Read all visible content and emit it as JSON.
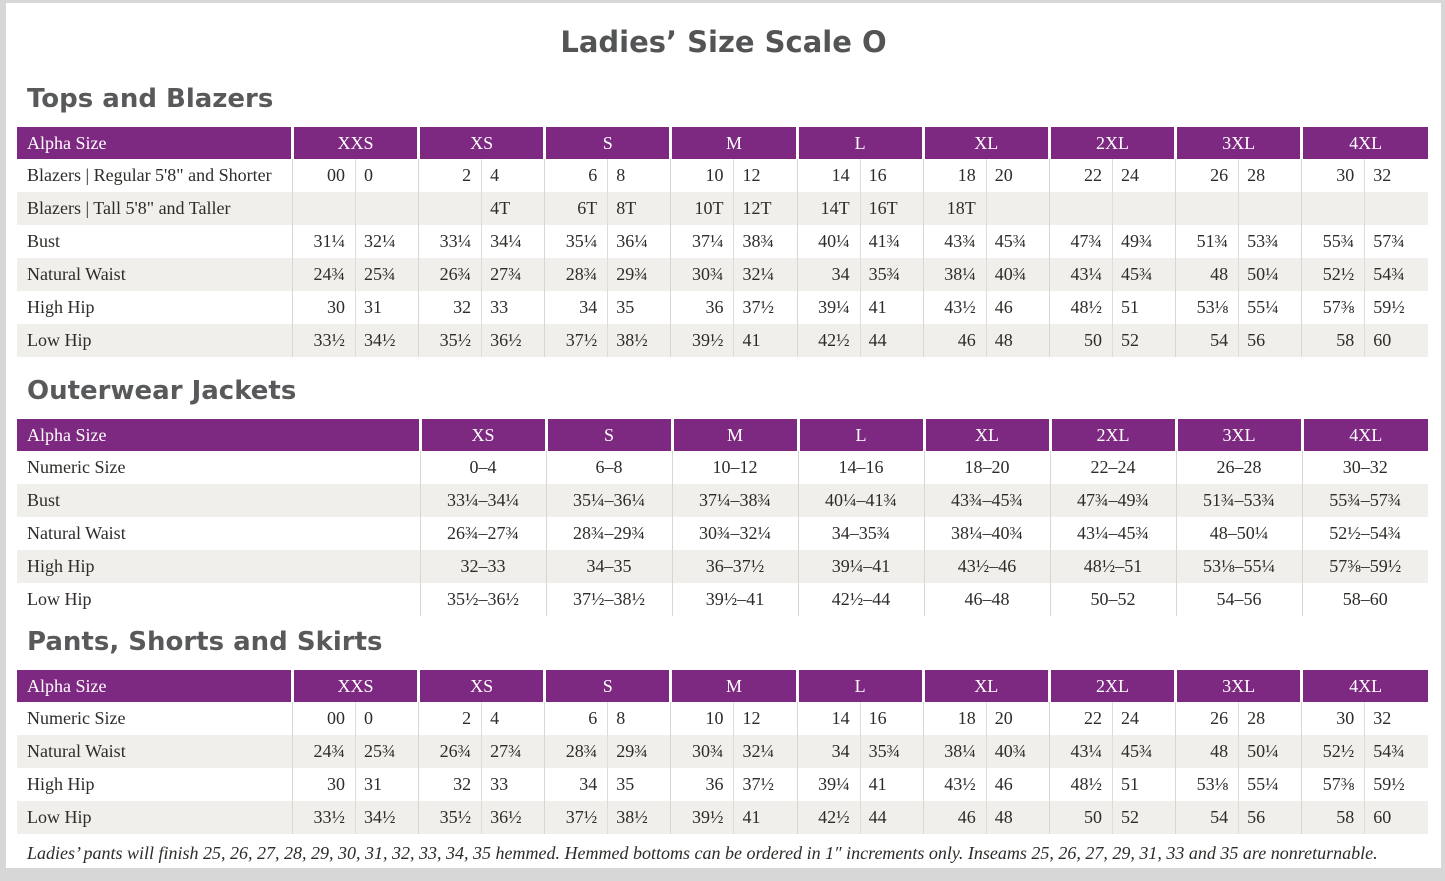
{
  "page": {
    "title": "Ladies’ Size Scale O",
    "footnote": "Ladies’ pants will finish 25, 26, 27, 28, 29, 30, 31, 32, 33, 34, 35 hemmed. Hemmed bottoms can be ordered in 1″ increments only. Inseams 25, 26, 27, 29, 31, 33 and 35 are nonreturnable."
  },
  "colors": {
    "header_background": "#7D2981",
    "row_stripe": "#F1EFEC",
    "heading_text": "#58595B",
    "body_text": "#2E2B28"
  },
  "tables": [
    {
      "section_title": "Tops and Blazers",
      "layout": "pairs",
      "header_label": "Alpha Size",
      "size_headers": [
        "XXS",
        "XS",
        "S",
        "M",
        "L",
        "XL",
        "2XL",
        "3XL",
        "4XL"
      ],
      "rows": [
        {
          "label": "Blazers | Regular 5'8\" and Shorter",
          "cells": [
            [
              "00",
              "0"
            ],
            [
              "2",
              "4"
            ],
            [
              "6",
              "8"
            ],
            [
              "10",
              "12"
            ],
            [
              "14",
              "16"
            ],
            [
              "18",
              "20"
            ],
            [
              "22",
              "24"
            ],
            [
              "26",
              "28"
            ],
            [
              "30",
              "32"
            ]
          ]
        },
        {
          "label": "Blazers | Tall 5'8\" and Taller",
          "cells": [
            [
              "",
              ""
            ],
            [
              "",
              "4T"
            ],
            [
              "6T",
              "8T"
            ],
            [
              "10T",
              "12T"
            ],
            [
              "14T",
              "16T"
            ],
            [
              "18T",
              ""
            ],
            [
              "",
              ""
            ],
            [
              "",
              ""
            ],
            [
              "",
              ""
            ]
          ]
        },
        {
          "label": "Bust",
          "cells": [
            [
              "31¼",
              "32¼"
            ],
            [
              "33¼",
              "34¼"
            ],
            [
              "35¼",
              "36¼"
            ],
            [
              "37¼",
              "38¾"
            ],
            [
              "40¼",
              "41¾"
            ],
            [
              "43¾",
              "45¾"
            ],
            [
              "47¾",
              "49¾"
            ],
            [
              "51¾",
              "53¾"
            ],
            [
              "55¾",
              "57¾"
            ]
          ]
        },
        {
          "label": "Natural Waist",
          "cells": [
            [
              "24¾",
              "25¾"
            ],
            [
              "26¾",
              "27¾"
            ],
            [
              "28¾",
              "29¾"
            ],
            [
              "30¾",
              "32¼"
            ],
            [
              "34",
              "35¾"
            ],
            [
              "38¼",
              "40¾"
            ],
            [
              "43¼",
              "45¾"
            ],
            [
              "48",
              "50¼"
            ],
            [
              "52½",
              "54¾"
            ]
          ]
        },
        {
          "label": "High Hip",
          "cells": [
            [
              "30",
              "31"
            ],
            [
              "32",
              "33"
            ],
            [
              "34",
              "35"
            ],
            [
              "36",
              "37½"
            ],
            [
              "39¼",
              "41"
            ],
            [
              "43½",
              "46"
            ],
            [
              "48½",
              "51"
            ],
            [
              "53⅛",
              "55¼"
            ],
            [
              "57⅜",
              "59½"
            ]
          ]
        },
        {
          "label": "Low Hip",
          "cells": [
            [
              "33½",
              "34½"
            ],
            [
              "35½",
              "36½"
            ],
            [
              "37½",
              "38½"
            ],
            [
              "39½",
              "41"
            ],
            [
              "42½",
              "44"
            ],
            [
              "46",
              "48"
            ],
            [
              "50",
              "52"
            ],
            [
              "54",
              "56"
            ],
            [
              "58",
              "60"
            ]
          ]
        }
      ]
    },
    {
      "section_title": "Outerwear Jackets",
      "layout": "single",
      "header_label": "Alpha Size",
      "size_headers": [
        "XS",
        "S",
        "M",
        "L",
        "XL",
        "2XL",
        "3XL",
        "4XL"
      ],
      "rows": [
        {
          "label": "Numeric Size",
          "cells": [
            "0–4",
            "6–8",
            "10–12",
            "14–16",
            "18–20",
            "22–24",
            "26–28",
            "30–32"
          ]
        },
        {
          "label": "Bust",
          "cells": [
            "33¼–34¼",
            "35¼–36¼",
            "37¼–38¾",
            "40¼–41¾",
            "43¾–45¾",
            "47¾–49¾",
            "51¾–53¾",
            "55¾–57¾"
          ]
        },
        {
          "label": "Natural Waist",
          "cells": [
            "26¾–27¾",
            "28¾–29¾",
            "30¾–32¼",
            "34–35¾",
            "38¼–40¾",
            "43¼–45¾",
            "48–50¼",
            "52½–54¾"
          ]
        },
        {
          "label": "High Hip",
          "cells": [
            "32–33",
            "34–35",
            "36–37½",
            "39¼–41",
            "43½–46",
            "48½–51",
            "53⅛–55¼",
            "57⅜–59½"
          ]
        },
        {
          "label": "Low Hip",
          "cells": [
            "35½–36½",
            "37½–38½",
            "39½–41",
            "42½–44",
            "46–48",
            "50–52",
            "54–56",
            "58–60"
          ]
        }
      ]
    },
    {
      "section_title": "Pants, Shorts and Skirts",
      "layout": "pairs",
      "header_label": "Alpha Size",
      "size_headers": [
        "XXS",
        "XS",
        "S",
        "M",
        "L",
        "XL",
        "2XL",
        "3XL",
        "4XL"
      ],
      "rows": [
        {
          "label": "Numeric Size",
          "cells": [
            [
              "00",
              "0"
            ],
            [
              "2",
              "4"
            ],
            [
              "6",
              "8"
            ],
            [
              "10",
              "12"
            ],
            [
              "14",
              "16"
            ],
            [
              "18",
              "20"
            ],
            [
              "22",
              "24"
            ],
            [
              "26",
              "28"
            ],
            [
              "30",
              "32"
            ]
          ]
        },
        {
          "label": "Natural Waist",
          "cells": [
            [
              "24¾",
              "25¾"
            ],
            [
              "26¾",
              "27¾"
            ],
            [
              "28¾",
              "29¾"
            ],
            [
              "30¾",
              "32¼"
            ],
            [
              "34",
              "35¾"
            ],
            [
              "38¼",
              "40¾"
            ],
            [
              "43¼",
              "45¾"
            ],
            [
              "48",
              "50¼"
            ],
            [
              "52½",
              "54¾"
            ]
          ]
        },
        {
          "label": "High Hip",
          "cells": [
            [
              "30",
              "31"
            ],
            [
              "32",
              "33"
            ],
            [
              "34",
              "35"
            ],
            [
              "36",
              "37½"
            ],
            [
              "39¼",
              "41"
            ],
            [
              "43½",
              "46"
            ],
            [
              "48½",
              "51"
            ],
            [
              "53⅛",
              "55¼"
            ],
            [
              "57⅜",
              "59½"
            ]
          ]
        },
        {
          "label": "Low Hip",
          "cells": [
            [
              "33½",
              "34½"
            ],
            [
              "35½",
              "36½"
            ],
            [
              "37½",
              "38½"
            ],
            [
              "39½",
              "41"
            ],
            [
              "42½",
              "44"
            ],
            [
              "46",
              "48"
            ],
            [
              "50",
              "52"
            ],
            [
              "54",
              "56"
            ],
            [
              "58",
              "60"
            ]
          ]
        }
      ]
    }
  ]
}
